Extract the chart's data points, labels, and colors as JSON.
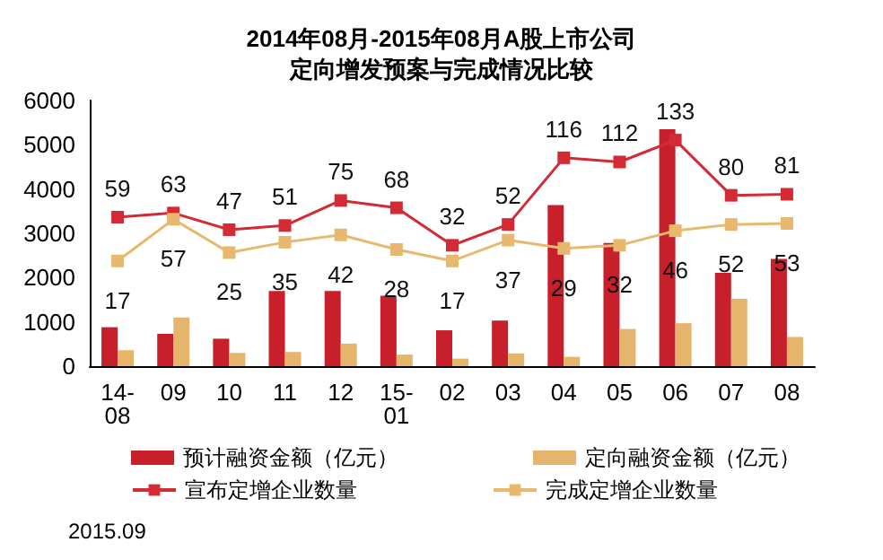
{
  "chart_data": {
    "type": "bar",
    "title": "2014年08月-2015年08月A股上市公司",
    "subtitle": "定向增发预案与完成情况比较",
    "categories": [
      "14-08",
      "09",
      "10",
      "11",
      "12",
      "15-01",
      "02",
      "03",
      "04",
      "05",
      "06",
      "07",
      "08"
    ],
    "series": [
      {
        "name": "预计融资金额（亿元）",
        "color": "#c8202a",
        "values": [
          880,
          730,
          620,
          1700,
          1700,
          1590,
          810,
          1030,
          3640,
          2780,
          5350,
          2110,
          2420
        ]
      },
      {
        "name": "定向融资金额（亿元）",
        "color": "#e6b56c",
        "values": [
          360,
          1100,
          300,
          320,
          510,
          260,
          170,
          290,
          210,
          840,
          970,
          1520,
          660
        ]
      },
      {
        "name": "宣布定增企业数量",
        "type": "line",
        "axis": "y2",
        "color": "#d42a33",
        "values": [
          59,
          63,
          47,
          51,
          75,
          68,
          32,
          52,
          116,
          112,
          133,
          80,
          81
        ],
        "value_labels": [
          "59",
          "63",
          "47",
          "51",
          "75",
          "68",
          "32",
          "52",
          "116",
          "112",
          "133",
          "80",
          "81"
        ]
      },
      {
        "name": "完成定增企业数量",
        "type": "line",
        "axis": "y2",
        "color": "#e8b86e",
        "values": [
          17,
          57,
          25,
          35,
          42,
          28,
          17,
          37,
          29,
          32,
          46,
          52,
          53
        ],
        "value_labels": [
          "17",
          "57",
          "25",
          "35",
          "42",
          "28",
          "17",
          "37",
          "29",
          "32",
          "46",
          "52",
          "53"
        ]
      }
    ],
    "ylim": [
      0,
      6000
    ],
    "yticks": [
      0,
      1000,
      2000,
      3000,
      4000,
      5000,
      6000
    ],
    "y2lim": [
      -84,
      171
    ],
    "marker": "square",
    "line_style": "solid",
    "legend": "bottom",
    "annotations": [
      "2015.09"
    ]
  }
}
